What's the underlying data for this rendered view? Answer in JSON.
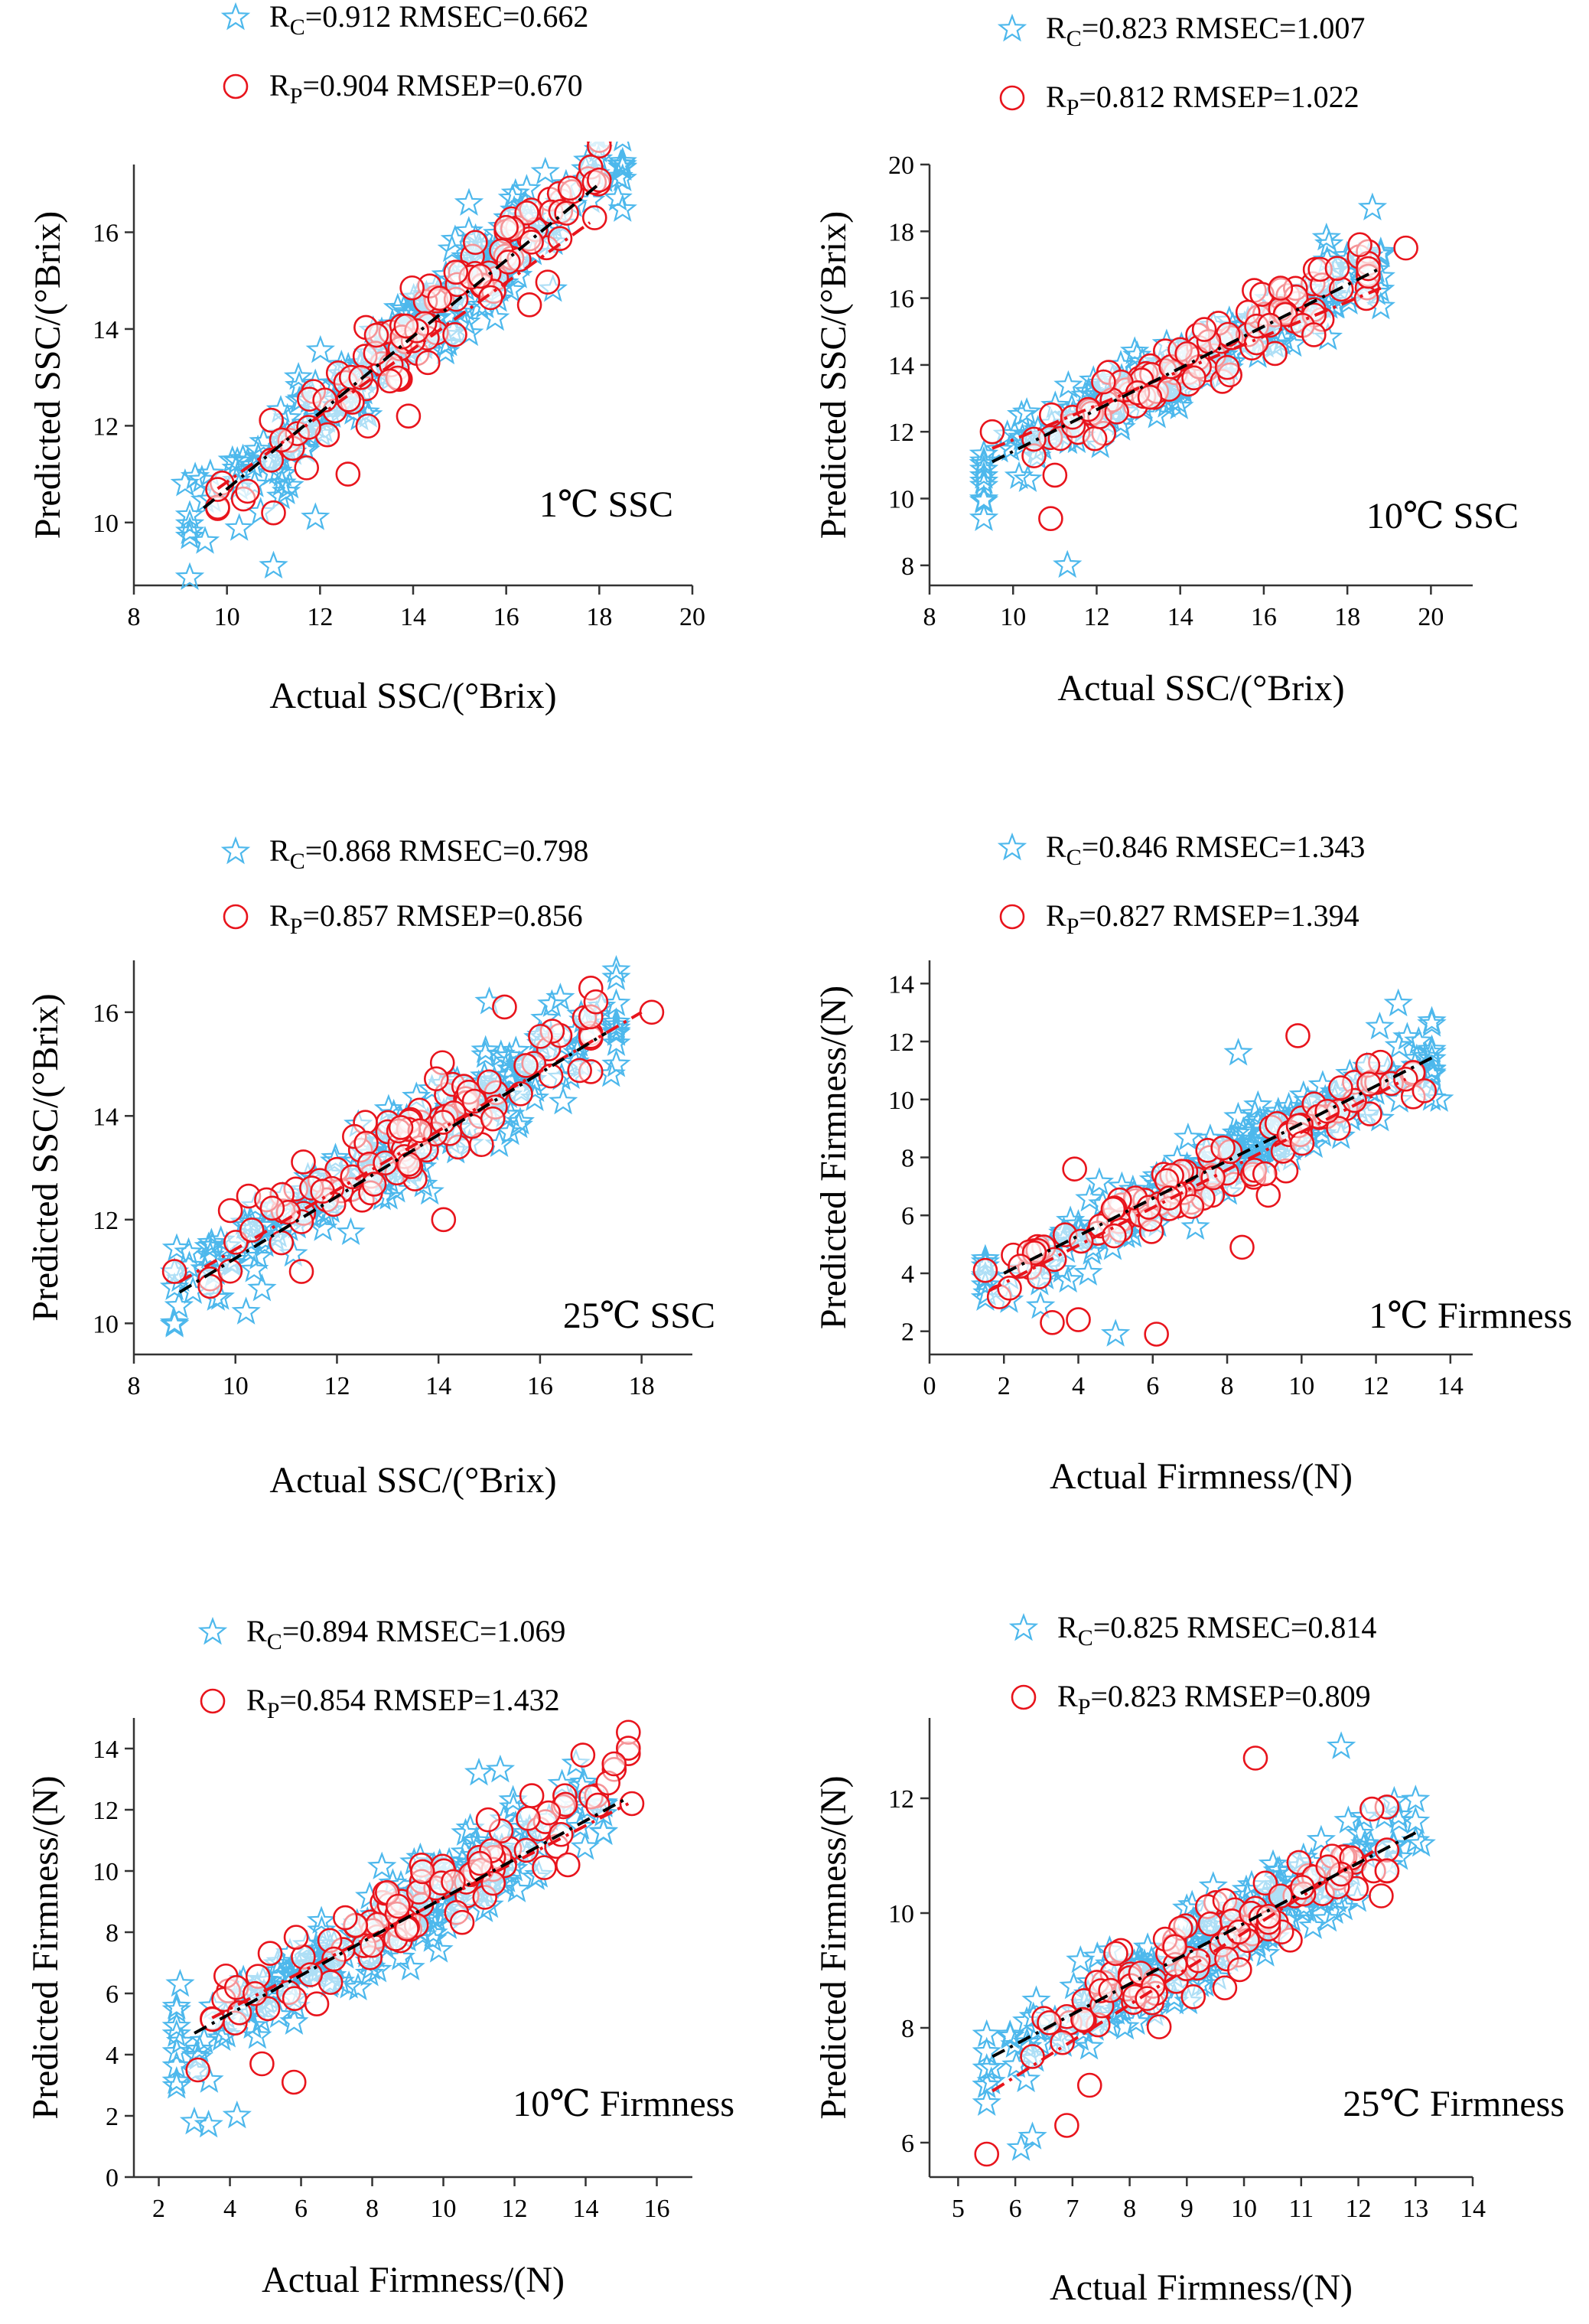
{
  "colors": {
    "calibration": "#4db8ec",
    "prediction": "#e8141c",
    "fit_calibration": "#000000",
    "fit_prediction": "#e8141c",
    "axis": "#333333"
  },
  "chart_data": [
    {
      "type": "scatter",
      "panel": "1°C SSC",
      "annotation": "1℃ SSC",
      "xlabel": "Actual SSC/(°Brix)",
      "ylabel": "Predicted SSC/(°Brix)",
      "xlim": [
        8,
        20
      ],
      "ylim": [
        8.7,
        17.4
      ],
      "xticks": [
        8,
        10,
        12,
        14,
        16,
        18,
        20
      ],
      "yticks": [
        10,
        12,
        14,
        16
      ],
      "legend": [
        {
          "symbol": "star",
          "main": "R",
          "sub": "C",
          "rest": "=0.912 RMSEC=0.662"
        },
        {
          "symbol": "circle",
          "main": "R",
          "sub": "P",
          "rest": "=0.904 RMSEP=0.670"
        }
      ],
      "fit_calibration": [
        [
          9.5,
          10.3
        ],
        [
          18.0,
          17.0
        ]
      ],
      "fit_prediction": [
        [
          9.8,
          10.7
        ],
        [
          17.8,
          16.2
        ]
      ],
      "calibration": {
        "n": 240,
        "xmin": 9.2,
        "xmax": 18.5,
        "slope": 0.83,
        "intercept": 2.3,
        "spread": 1.0,
        "seed": 11,
        "extra": [
          [
            11.0,
            9.1
          ],
          [
            9.1,
            10.8
          ],
          [
            15.2,
            16.6
          ],
          [
            16.2,
            16.8
          ],
          [
            18.4,
            16.7
          ],
          [
            11.9,
            10.1
          ]
        ]
      },
      "prediction": {
        "n": 110,
        "xmin": 9.8,
        "xmax": 18.0,
        "slope": 0.83,
        "intercept": 2.3,
        "spread": 0.8,
        "seed": 12,
        "extra": [
          [
            11.0,
            10.2
          ],
          [
            12.6,
            11.0
          ],
          [
            13.9,
            12.2
          ],
          [
            16.0,
            16.1
          ],
          [
            16.5,
            14.5
          ],
          [
            17.9,
            16.3
          ]
        ]
      }
    },
    {
      "type": "scatter",
      "panel": "10°C SSC",
      "annotation": "10℃ SSC",
      "xlabel": "Actual SSC/(°Brix)",
      "ylabel": "Predicted SSC/(°Brix)",
      "xlim": [
        8,
        21
      ],
      "ylim": [
        7.4,
        20
      ],
      "xticks": [
        8,
        10,
        12,
        14,
        16,
        18,
        20
      ],
      "yticks": [
        8,
        10,
        12,
        14,
        16,
        18,
        20
      ],
      "legend": [
        {
          "symbol": "star",
          "main": "R",
          "sub": "C",
          "rest": "=0.823 RMSEC=1.007"
        },
        {
          "symbol": "circle",
          "main": "R",
          "sub": "P",
          "rest": "=0.812 RMSEP=1.022"
        }
      ],
      "fit_calibration": [
        [
          9.5,
          11.1
        ],
        [
          18.8,
          16.9
        ]
      ],
      "fit_prediction": [
        [
          9.5,
          11.5
        ],
        [
          18.8,
          16.3
        ]
      ],
      "calibration": {
        "n": 220,
        "xmin": 9.3,
        "xmax": 18.8,
        "slope": 0.63,
        "intercept": 5.1,
        "spread": 1.0,
        "seed": 21,
        "extra": [
          [
            11.3,
            8.0
          ],
          [
            9.3,
            9.4
          ],
          [
            18.6,
            18.7
          ],
          [
            17.5,
            17.8
          ],
          [
            10.2,
            12.5
          ]
        ]
      },
      "prediction": {
        "n": 100,
        "xmin": 10.5,
        "xmax": 18.5,
        "slope": 0.6,
        "intercept": 5.6,
        "spread": 0.9,
        "seed": 22,
        "extra": [
          [
            10.9,
            9.4
          ],
          [
            11.0,
            10.7
          ],
          [
            9.5,
            12.0
          ],
          [
            18.3,
            17.6
          ],
          [
            19.4,
            17.5
          ],
          [
            16.4,
            16.3
          ]
        ]
      }
    },
    {
      "type": "scatter",
      "panel": "25°C SSC",
      "annotation": "25℃ SSC",
      "xlabel": "Actual SSC/(°Brix)",
      "ylabel": "Predicted SSC/(°Brix)",
      "xlim": [
        8,
        19
      ],
      "ylim": [
        9.4,
        17
      ],
      "xticks": [
        8,
        10,
        12,
        14,
        16,
        18
      ],
      "yticks": [
        10,
        12,
        14,
        16
      ],
      "legend": [
        {
          "symbol": "star",
          "main": "R",
          "sub": "C",
          "rest": "=0.868 RMSEC=0.798"
        },
        {
          "symbol": "circle",
          "main": "R",
          "sub": "P",
          "rest": "=0.857 RMSEP=0.856"
        }
      ],
      "fit_calibration": [
        [
          8.9,
          10.6
        ],
        [
          17.3,
          15.6
        ]
      ],
      "fit_prediction": [
        [
          8.9,
          10.8
        ],
        [
          18.0,
          16.0
        ]
      ],
      "calibration": {
        "n": 230,
        "xmin": 8.8,
        "xmax": 17.5,
        "slope": 0.6,
        "intercept": 5.4,
        "spread": 0.9,
        "seed": 31,
        "extra": [
          [
            8.8,
            10.0
          ],
          [
            15.0,
            16.2
          ],
          [
            17.4,
            14.8
          ],
          [
            9.7,
            10.5
          ]
        ]
      },
      "prediction": {
        "n": 100,
        "xmin": 9.5,
        "xmax": 17.0,
        "slope": 0.58,
        "intercept": 5.7,
        "spread": 0.8,
        "seed": 32,
        "extra": [
          [
            8.8,
            11.0
          ],
          [
            18.2,
            16.0
          ],
          [
            17.1,
            16.2
          ],
          [
            15.3,
            16.1
          ],
          [
            11.3,
            11.0
          ],
          [
            14.1,
            12.0
          ]
        ]
      }
    },
    {
      "type": "scatter",
      "panel": "1°C Firmness",
      "annotation": "1℃ Firmness",
      "xlabel": "Actual Firmness/(N)",
      "ylabel": "Predicted Firmness/(N)",
      "xlim": [
        0,
        14.6
      ],
      "ylim": [
        1.2,
        14.8
      ],
      "xticks": [
        0,
        2,
        4,
        6,
        8,
        10,
        12,
        14
      ],
      "yticks": [
        2,
        4,
        6,
        8,
        10,
        12,
        14
      ],
      "legend": [
        {
          "symbol": "star",
          "main": "R",
          "sub": "C",
          "rest": "=0.846 RMSEC=1.343"
        },
        {
          "symbol": "circle",
          "main": "R",
          "sub": "P",
          "rest": "=0.827 RMSEP=1.394"
        }
      ],
      "fit_calibration": [
        [
          2.0,
          4.0
        ],
        [
          13.6,
          11.5
        ]
      ],
      "fit_prediction": [
        [
          1.6,
          3.4
        ],
        [
          12.8,
          10.7
        ]
      ],
      "calibration": {
        "n": 230,
        "xmin": 1.5,
        "xmax": 13.5,
        "slope": 0.66,
        "intercept": 2.6,
        "spread": 1.1,
        "seed": 41,
        "extra": [
          [
            12.6,
            13.3
          ],
          [
            13.7,
            10.0
          ],
          [
            5.0,
            1.9
          ],
          [
            8.3,
            11.6
          ],
          [
            12.1,
            12.5
          ]
        ]
      },
      "prediction": {
        "n": 100,
        "xmin": 1.5,
        "xmax": 13.0,
        "slope": 0.64,
        "intercept": 2.6,
        "spread": 1.0,
        "seed": 42,
        "extra": [
          [
            6.1,
            1.9
          ],
          [
            3.3,
            2.3
          ],
          [
            4.0,
            2.4
          ],
          [
            1.5,
            4.1
          ],
          [
            9.9,
            12.2
          ],
          [
            13.3,
            10.3
          ],
          [
            3.9,
            7.6
          ],
          [
            8.4,
            4.9
          ]
        ]
      }
    },
    {
      "type": "scatter",
      "panel": "10°C Firmness",
      "annotation": "10℃  Firmness",
      "xlabel": "Actual Firmness/(N)",
      "ylabel": "Predicted Firmness/(N)",
      "xlim": [
        1.3,
        17
      ],
      "ylim": [
        0,
        15
      ],
      "xticks": [
        2,
        4,
        6,
        8,
        10,
        12,
        14,
        16
      ],
      "yticks": [
        0,
        2,
        4,
        6,
        8,
        10,
        12,
        14
      ],
      "legend": [
        {
          "symbol": "star",
          "main": "R",
          "sub": "C",
          "rest": "=0.894 RMSEC=1.069"
        },
        {
          "symbol": "circle",
          "main": "R",
          "sub": "P",
          "rest": "=0.854 RMSEP=1.432"
        }
      ],
      "fit_calibration": [
        [
          3.0,
          4.7
        ],
        [
          15.2,
          12.4
        ]
      ],
      "fit_prediction": [
        [
          3.5,
          5.2
        ],
        [
          15.2,
          12.2
        ]
      ],
      "calibration": {
        "n": 240,
        "xmin": 2.5,
        "xmax": 14.5,
        "slope": 0.7,
        "intercept": 2.3,
        "spread": 1.3,
        "seed": 51,
        "extra": [
          [
            3.0,
            1.8
          ],
          [
            3.4,
            1.7
          ],
          [
            4.2,
            2.0
          ],
          [
            2.6,
            6.3
          ],
          [
            11.0,
            13.2
          ],
          [
            11.6,
            13.3
          ]
        ]
      },
      "prediction": {
        "n": 100,
        "xmin": 3.5,
        "xmax": 15.2,
        "slope": 0.66,
        "intercept": 2.9,
        "spread": 1.1,
        "seed": 52,
        "extra": [
          [
            3.1,
            3.5
          ],
          [
            5.8,
            3.1
          ],
          [
            4.9,
            3.7
          ],
          [
            14.8,
            13.5
          ],
          [
            15.3,
            12.2
          ],
          [
            13.5,
            10.2
          ]
        ]
      }
    },
    {
      "type": "scatter",
      "panel": "25°C Firmness",
      "annotation": "25℃  Firmness",
      "xlabel": "Actual Firmness/(N)",
      "ylabel": "Predicted Firmness/(N)",
      "xlim": [
        4.5,
        14
      ],
      "ylim": [
        5.4,
        13.4
      ],
      "xticks": [
        5,
        6,
        7,
        8,
        9,
        10,
        11,
        12,
        13,
        14
      ],
      "yticks": [
        6,
        8,
        10,
        12
      ],
      "legend": [
        {
          "symbol": "star",
          "main": "R",
          "sub": "C",
          "rest": "=0.825 RMSEC=0.814"
        },
        {
          "symbol": "circle",
          "main": "R",
          "sub": "P",
          "rest": "=0.823 RMSEP=0.809"
        }
      ],
      "fit_calibration": [
        [
          5.6,
          7.5
        ],
        [
          13.0,
          11.4
        ]
      ],
      "fit_prediction": [
        [
          5.6,
          6.9
        ],
        [
          12.3,
          11.1
        ]
      ],
      "calibration": {
        "n": 230,
        "xmin": 5.5,
        "xmax": 13.0,
        "slope": 0.55,
        "intercept": 4.3,
        "spread": 0.7,
        "seed": 61,
        "extra": [
          [
            11.7,
            12.9
          ],
          [
            6.1,
            5.9
          ],
          [
            6.3,
            6.1
          ],
          [
            13.1,
            11.2
          ],
          [
            5.6,
            7.3
          ]
        ]
      },
      "prediction": {
        "n": 100,
        "xmin": 6.5,
        "xmax": 12.5,
        "slope": 0.55,
        "intercept": 4.3,
        "spread": 0.7,
        "seed": 62,
        "extra": [
          [
            5.5,
            5.8
          ],
          [
            6.9,
            6.3
          ],
          [
            7.3,
            7.0
          ],
          [
            10.2,
            12.7
          ],
          [
            12.4,
            10.3
          ],
          [
            6.3,
            7.5
          ]
        ]
      }
    }
  ]
}
